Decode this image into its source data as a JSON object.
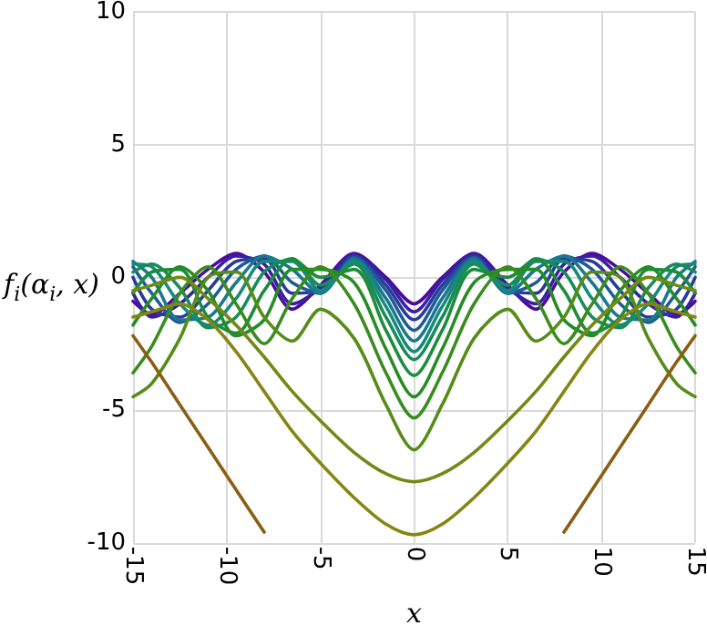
{
  "chart_data": {
    "type": "line",
    "xlabel": "x",
    "ylabel": "f$_{i}$(α$_{i}$, x)",
    "x": [
      -15,
      -14,
      -12.5,
      -11,
      -9.5,
      -8,
      -6.5,
      -5,
      -3.2,
      -1.5,
      0,
      1.5,
      3.2,
      5,
      6.5,
      8,
      9.5,
      11,
      12.5,
      14,
      15
    ],
    "series": [
      {
        "color": "#4b0c9c",
        "values": [
          -0.9,
          -1.4,
          -0.6,
          0.3,
          0.9,
          0.2,
          -1.2,
          -0.3,
          0.9,
          0.0,
          -1.0,
          0.0,
          0.9,
          -0.3,
          -1.2,
          0.2,
          0.9,
          0.3,
          -0.6,
          -1.4,
          -0.9
        ]
      },
      {
        "color": "#3a1fa0",
        "values": [
          -0.6,
          -1.5,
          -1.0,
          0.0,
          0.8,
          0.5,
          -1.0,
          -0.4,
          0.85,
          -0.1,
          -1.3,
          -0.1,
          0.85,
          -0.4,
          -1.0,
          0.5,
          0.8,
          0.0,
          -1.0,
          -1.5,
          -0.6
        ]
      },
      {
        "color": "#2a3a9c",
        "values": [
          0.0,
          -1.2,
          -1.5,
          -0.5,
          0.6,
          0.7,
          -0.6,
          -0.5,
          0.8,
          -0.3,
          -1.6,
          -0.3,
          0.8,
          -0.5,
          -0.6,
          0.7,
          0.6,
          -0.5,
          -1.5,
          -1.2,
          0.0
        ]
      },
      {
        "color": "#1f5a98",
        "values": [
          0.4,
          -0.6,
          -1.7,
          -1.0,
          0.3,
          0.8,
          -0.2,
          -0.6,
          0.75,
          -0.5,
          -2.0,
          -0.5,
          0.75,
          -0.6,
          -0.2,
          0.8,
          0.3,
          -1.0,
          -1.7,
          -0.6,
          0.4
        ]
      },
      {
        "color": "#1a7890",
        "values": [
          0.6,
          0.0,
          -1.6,
          -1.5,
          -0.2,
          0.8,
          0.3,
          -0.6,
          0.7,
          -0.8,
          -2.4,
          -0.8,
          0.7,
          -0.6,
          0.3,
          0.8,
          -0.2,
          -1.5,
          -1.6,
          0.0,
          0.6
        ]
      },
      {
        "color": "#178a7a",
        "values": [
          0.5,
          0.4,
          -1.0,
          -1.8,
          -0.8,
          0.6,
          0.6,
          -0.5,
          0.6,
          -1.1,
          -2.8,
          -1.1,
          0.6,
          -0.5,
          0.6,
          0.6,
          -0.8,
          -1.8,
          -1.0,
          0.4,
          0.5
        ]
      },
      {
        "color": "#178c5a",
        "values": [
          0.2,
          0.5,
          -0.4,
          -1.9,
          -1.5,
          0.2,
          0.7,
          -0.3,
          0.5,
          -1.5,
          -3.1,
          -1.5,
          0.5,
          -0.3,
          0.7,
          0.2,
          -1.5,
          -1.9,
          -0.4,
          0.5,
          0.2
        ]
      },
      {
        "color": "#1d8c3c",
        "values": [
          -0.6,
          0.2,
          0.3,
          -1.5,
          -2.1,
          -0.5,
          0.7,
          0.0,
          0.3,
          -2.0,
          -3.7,
          -2.0,
          0.3,
          0.0,
          0.7,
          -0.5,
          -2.1,
          -1.5,
          0.3,
          0.2,
          -0.6
        ]
      },
      {
        "color": "#268c26",
        "values": [
          -1.8,
          -0.8,
          0.4,
          -0.5,
          -2.2,
          -1.6,
          0.3,
          0.3,
          -0.2,
          -2.7,
          -4.5,
          -2.7,
          -0.2,
          0.3,
          0.3,
          -1.6,
          -2.2,
          -0.5,
          0.4,
          -0.8,
          -1.8
        ]
      },
      {
        "color": "#3a8c1e",
        "values": [
          -3.6,
          -2.6,
          -0.6,
          0.4,
          -1.0,
          -2.5,
          -0.8,
          0.4,
          -1.0,
          -3.6,
          -5.3,
          -3.6,
          -1.0,
          0.4,
          -0.8,
          -2.5,
          -1.0,
          0.4,
          -0.6,
          -2.6,
          -3.6
        ]
      },
      {
        "color": "#568c18",
        "values": [
          -4.5,
          -4.0,
          -2.3,
          0.0,
          0.2,
          -1.5,
          -2.4,
          -1.2,
          -2.3,
          -4.8,
          -6.5,
          -4.8,
          -2.3,
          -1.2,
          -2.4,
          -1.5,
          0.2,
          0.0,
          -2.3,
          -4.0,
          -4.5
        ]
      },
      {
        "color": "#708a14",
        "values": [
          -0.5,
          -0.3,
          0.0,
          -0.8,
          -1.8,
          -3.0,
          -4.3,
          -5.4,
          -6.6,
          -7.4,
          -7.7,
          -7.4,
          -6.6,
          -5.4,
          -4.3,
          -3.0,
          -1.8,
          -0.8,
          0.0,
          -0.3,
          -0.5
        ]
      },
      {
        "color": "#858612",
        "values": [
          -1.5,
          -1.3,
          -1.0,
          -1.6,
          -2.8,
          -4.3,
          -5.8,
          -7.0,
          -8.3,
          -9.3,
          -9.7,
          -9.3,
          -8.3,
          -7.0,
          -5.8,
          -4.3,
          -2.8,
          -1.6,
          -1.0,
          -1.3,
          -1.5
        ]
      },
      {
        "color": "#8b5e14",
        "values": [
          -2.2,
          -3.2,
          -4.8,
          -6.4,
          -8.0,
          -9.6,
          null,
          null,
          null,
          null,
          null,
          null,
          null,
          null,
          null,
          -9.6,
          -8.0,
          -6.4,
          -4.8,
          -3.2,
          -2.2
        ]
      }
    ],
    "xlim": [
      -15,
      15
    ],
    "xticks": [
      -15,
      -10,
      -5,
      0,
      5,
      10,
      15
    ],
    "ylim": [
      -10,
      10
    ],
    "yticks": [
      -10,
      -5,
      0,
      5,
      10
    ],
    "grid": true,
    "marker": "none",
    "line_style": "solid"
  }
}
